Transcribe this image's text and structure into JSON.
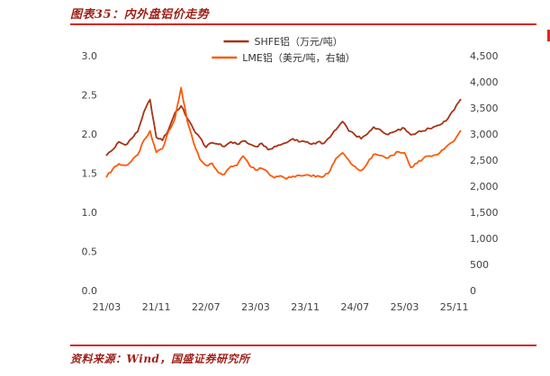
{
  "header": {
    "title": "图表35：内外盘铝价走势"
  },
  "footer": {
    "source": "资料来源：Wind，国盛证券研究所"
  },
  "colors": {
    "rule_red": "#D9281E",
    "text_red": "#9E1F17",
    "shfe_line": "#A83215",
    "lme_line": "#FA5A0A",
    "axis_text": "#404040"
  },
  "chart_data": {
    "type": "line",
    "title": "内外盘铝价走势",
    "x_start": "21/03",
    "x_interval": "monthly",
    "months_total": 58,
    "x_tick_month_indices": [
      0,
      8,
      16,
      24,
      32,
      40,
      48,
      56
    ],
    "x_tick_labels": [
      "21/03",
      "21/11",
      "22/07",
      "23/03",
      "23/11",
      "24/07",
      "25/03",
      "25/11"
    ],
    "left_axis": {
      "min": 0.0,
      "max": 3.0,
      "tick_labels": [
        "3.0",
        "2.5",
        "2.0",
        "1.5",
        "1.0",
        "0.5",
        "0.0"
      ]
    },
    "right_axis": {
      "min": 0,
      "max": 4500,
      "tick_labels": [
        "4,500",
        "4,000",
        "3,500",
        "3,000",
        "2,500",
        "2,000",
        "1,500",
        "1,000",
        "500",
        "0"
      ]
    },
    "grid": false,
    "legend_position": "top-center",
    "series": [
      {
        "name": "SHFE铝（万元/吨）",
        "axis": "left",
        "color": "#A83215",
        "values": [
          1.73,
          1.8,
          1.9,
          1.86,
          1.94,
          2.03,
          2.28,
          2.44,
          1.96,
          1.92,
          2.06,
          2.27,
          2.36,
          2.2,
          2.06,
          1.96,
          1.83,
          1.89,
          1.87,
          1.84,
          1.9,
          1.87,
          1.91,
          1.87,
          1.84,
          1.88,
          1.8,
          1.84,
          1.86,
          1.89,
          1.94,
          1.9,
          1.9,
          1.87,
          1.9,
          1.88,
          1.96,
          2.06,
          2.16,
          2.04,
          1.99,
          1.94,
          2.0,
          2.09,
          2.06,
          2.0,
          2.02,
          2.06,
          2.07,
          1.99,
          2.02,
          2.04,
          2.07,
          2.1,
          2.13,
          2.2,
          2.31,
          2.44
        ]
      },
      {
        "name": "LME铝（美元/吨，右轴）",
        "axis": "right",
        "color": "#FA5A0A",
        "values": [
          2180,
          2330,
          2430,
          2400,
          2480,
          2600,
          2880,
          3060,
          2650,
          2720,
          3060,
          3290,
          3890,
          3240,
          2840,
          2520,
          2400,
          2440,
          2260,
          2230,
          2380,
          2400,
          2580,
          2400,
          2310,
          2340,
          2260,
          2160,
          2200,
          2140,
          2190,
          2210,
          2210,
          2190,
          2200,
          2190,
          2300,
          2540,
          2640,
          2500,
          2380,
          2300,
          2440,
          2610,
          2590,
          2540,
          2590,
          2660,
          2640,
          2360,
          2440,
          2530,
          2580,
          2600,
          2690,
          2790,
          2870,
          3060
        ]
      }
    ]
  }
}
